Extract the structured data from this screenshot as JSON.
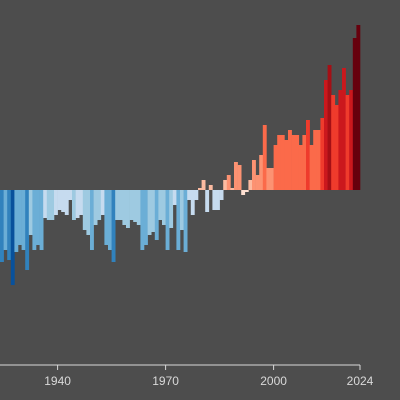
{
  "chart_data": {
    "type": "bar",
    "x": [
      1925,
      1926,
      1927,
      1928,
      1929,
      1930,
      1931,
      1932,
      1933,
      1934,
      1935,
      1936,
      1937,
      1938,
      1939,
      1940,
      1941,
      1942,
      1943,
      1944,
      1945,
      1946,
      1947,
      1948,
      1949,
      1950,
      1951,
      1952,
      1953,
      1954,
      1955,
      1956,
      1957,
      1958,
      1959,
      1960,
      1961,
      1962,
      1963,
      1964,
      1965,
      1966,
      1967,
      1968,
      1969,
      1970,
      1971,
      1972,
      1973,
      1974,
      1975,
      1976,
      1977,
      1978,
      1979,
      1980,
      1981,
      1982,
      1983,
      1984,
      1985,
      1986,
      1987,
      1988,
      1989,
      1990,
      1991,
      1992,
      1993,
      1994,
      1995,
      1996,
      1997,
      1998,
      1999,
      2000,
      2001,
      2002,
      2003,
      2004,
      2005,
      2006,
      2007,
      2008,
      2009,
      2010,
      2011,
      2012,
      2013,
      2014,
      2015,
      2016,
      2017,
      2018,
      2019,
      2020,
      2021,
      2022,
      2023,
      2024
    ],
    "values": [
      -0.72,
      -0.6,
      -0.7,
      -0.95,
      -0.62,
      -0.55,
      -0.6,
      -0.8,
      -0.45,
      -0.6,
      -0.55,
      -0.6,
      -0.28,
      -0.3,
      -0.3,
      -0.25,
      -0.2,
      -0.22,
      -0.25,
      -0.1,
      -0.3,
      -0.28,
      -0.25,
      -0.4,
      -0.45,
      -0.6,
      -0.35,
      -0.3,
      -0.25,
      -0.55,
      -0.6,
      -0.72,
      -0.3,
      -0.3,
      -0.35,
      -0.38,
      -0.3,
      -0.32,
      -0.35,
      -0.6,
      -0.55,
      -0.45,
      -0.42,
      -0.5,
      -0.3,
      -0.35,
      -0.6,
      -0.38,
      -0.15,
      -0.6,
      -0.4,
      -0.62,
      -0.1,
      -0.25,
      -0.1,
      0.02,
      0.1,
      -0.22,
      0.05,
      -0.2,
      -0.2,
      -0.1,
      0.1,
      0.15,
      0.02,
      0.28,
      0.25,
      -0.05,
      -0.02,
      0.1,
      0.3,
      0.15,
      0.35,
      0.65,
      0.22,
      0.22,
      0.45,
      0.55,
      0.55,
      0.5,
      0.6,
      0.55,
      0.55,
      0.45,
      0.55,
      0.7,
      0.45,
      0.6,
      0.6,
      0.72,
      1.1,
      1.25,
      0.95,
      0.85,
      1.0,
      1.22,
      0.95,
      1.0,
      1.52,
      1.65
    ],
    "colors": [
      "#08519c",
      "#3182bd",
      "#6baed6",
      "#9ecae1",
      "#c6dbef",
      "#fee0d2",
      "#fcbba1",
      "#fc9272",
      "#fb6a4a",
      "#ef3b2c",
      "#cb181d",
      "#a50f15",
      "#67000d"
    ],
    "xlim": [
      1924,
      2024
    ],
    "xticks": [
      1940,
      1970,
      2000,
      2024
    ],
    "ylim": [
      -1.7,
      1.9
    ]
  }
}
